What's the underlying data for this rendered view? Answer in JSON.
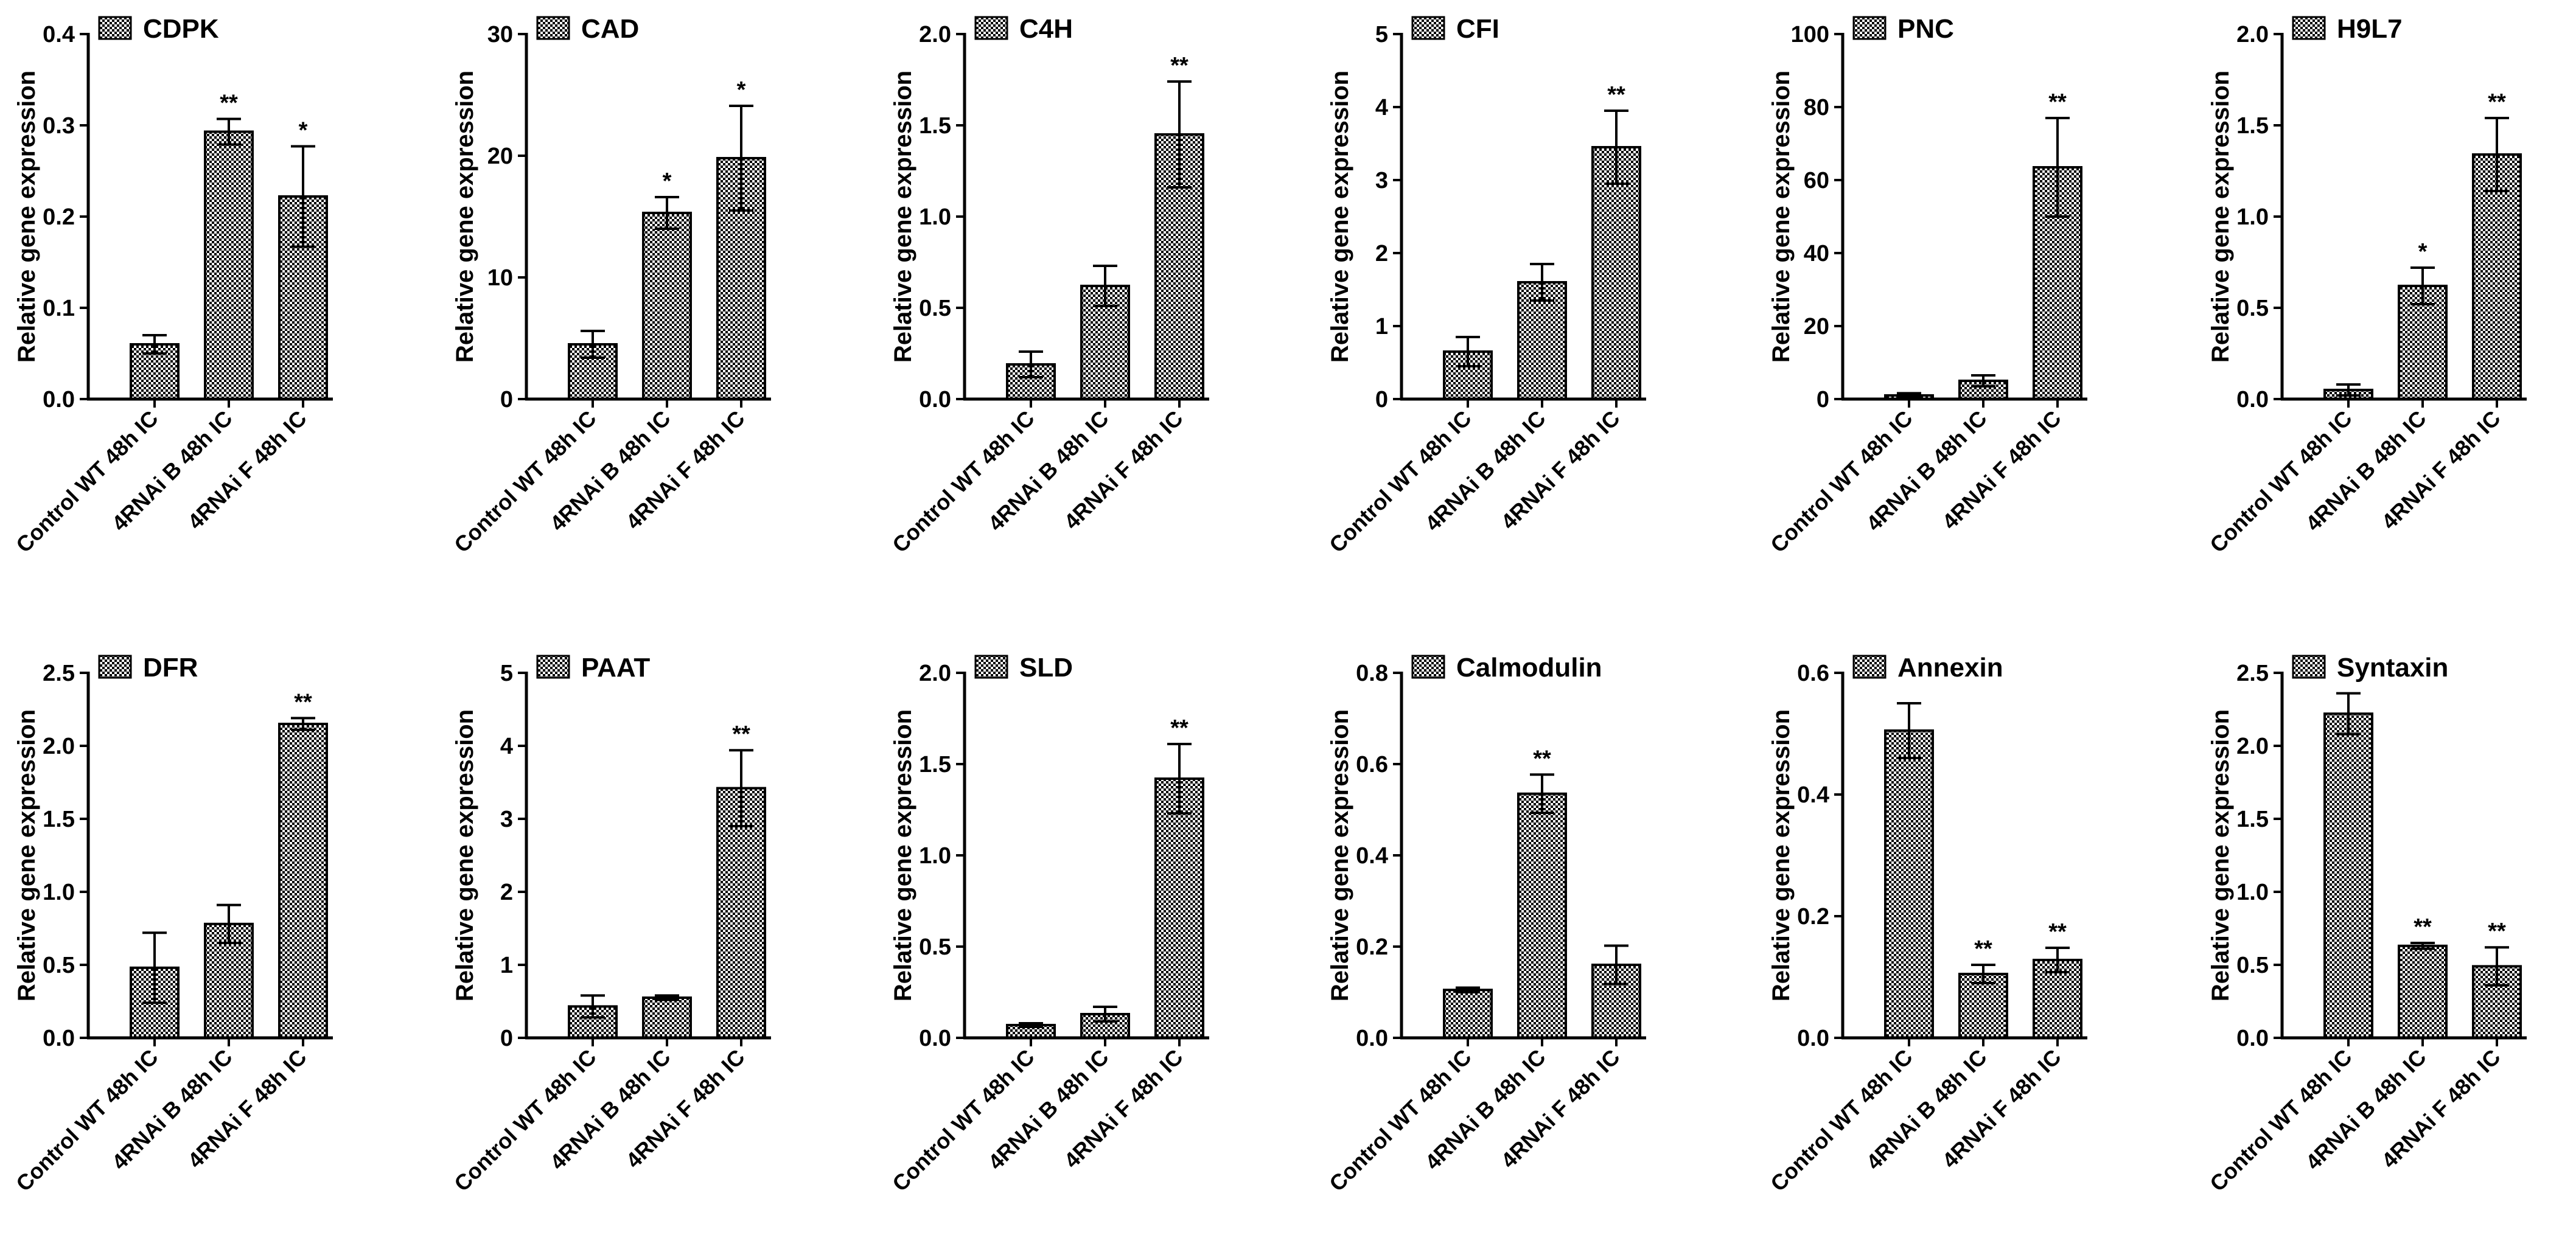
{
  "colors": {
    "bar_fill": "#ffffff",
    "hatch": "#000000",
    "axis": "#000000"
  },
  "chart_data": [
    {
      "type": "bar",
      "title": "CDPK",
      "legend": "CDPK",
      "ylabel": "Relative gene expression",
      "categories": [
        "Control WT 48h IC",
        "4RNAi B 48h IC",
        "4RNAi F 48h IC"
      ],
      "values": [
        0.06,
        0.293,
        0.222
      ],
      "errors": [
        0.01,
        0.014,
        0.055
      ],
      "significance": [
        "",
        "**",
        "*"
      ],
      "ylim": [
        0,
        0.4
      ],
      "yticks": [
        0,
        0.1,
        0.2,
        0.3,
        0.4
      ],
      "ytick_labels": [
        "0.0",
        "0.1",
        "0.2",
        "0.3",
        "0.4"
      ]
    },
    {
      "type": "bar",
      "title": "CAD",
      "legend": "CAD",
      "ylabel": "Relative gene expression",
      "categories": [
        "Control WT 48h IC",
        "4RNAi B 48h IC",
        "4RNAi F 48h IC"
      ],
      "values": [
        4.5,
        15.3,
        19.8
      ],
      "errors": [
        1.1,
        1.3,
        4.3
      ],
      "significance": [
        "",
        "*",
        "*"
      ],
      "ylim": [
        0,
        30
      ],
      "yticks": [
        0,
        10,
        20,
        30
      ],
      "ytick_labels": [
        "0",
        "10",
        "20",
        "30"
      ]
    },
    {
      "type": "bar",
      "title": "C4H",
      "legend": "C4H",
      "ylabel": "Relative gene expression",
      "categories": [
        "Control WT 48h IC",
        "4RNAi B 48h IC",
        "4RNAi F 48h IC"
      ],
      "values": [
        0.19,
        0.62,
        1.45
      ],
      "errors": [
        0.07,
        0.11,
        0.29
      ],
      "significance": [
        "",
        "",
        "**"
      ],
      "ylim": [
        0,
        2.0
      ],
      "yticks": [
        0,
        0.5,
        1.0,
        1.5,
        2.0
      ],
      "ytick_labels": [
        "0.0",
        "0.5",
        "1.0",
        "1.5",
        "2.0"
      ]
    },
    {
      "type": "bar",
      "title": "CFI",
      "legend": "CFI",
      "ylabel": "Relative gene expression",
      "categories": [
        "Control WT 48h IC",
        "4RNAi B 48h IC",
        "4RNAi F 48h IC"
      ],
      "values": [
        0.65,
        1.6,
        3.45
      ],
      "errors": [
        0.2,
        0.25,
        0.5
      ],
      "significance": [
        "",
        "",
        "**"
      ],
      "ylim": [
        0,
        5
      ],
      "yticks": [
        0,
        1,
        2,
        3,
        4,
        5
      ],
      "ytick_labels": [
        "0",
        "1",
        "2",
        "3",
        "4",
        "5"
      ]
    },
    {
      "type": "bar",
      "title": "PNC",
      "legend": "PNC",
      "ylabel": "Relative gene expression",
      "categories": [
        "Control WT 48h IC",
        "4RNAi B 48h IC",
        "4RNAi F 48h IC"
      ],
      "values": [
        1,
        5,
        63.5
      ],
      "errors": [
        0.6,
        1.5,
        13.5
      ],
      "significance": [
        "",
        "",
        "**"
      ],
      "ylim": [
        0,
        100
      ],
      "yticks": [
        0,
        20,
        40,
        60,
        80,
        100
      ],
      "ytick_labels": [
        "0",
        "20",
        "40",
        "60",
        "80",
        "100"
      ]
    },
    {
      "type": "bar",
      "title": "H9L7",
      "legend": "H9L7",
      "ylabel": "Relative gene expression",
      "categories": [
        "Control WT 48h IC",
        "4RNAi B 48h IC",
        "4RNAi F 48h IC"
      ],
      "values": [
        0.05,
        0.62,
        1.34
      ],
      "errors": [
        0.03,
        0.1,
        0.2
      ],
      "significance": [
        "",
        "*",
        "**"
      ],
      "ylim": [
        0,
        2.0
      ],
      "yticks": [
        0,
        0.5,
        1.0,
        1.5,
        2.0
      ],
      "ytick_labels": [
        "0.0",
        "0.5",
        "1.0",
        "1.5",
        "2.0"
      ]
    },
    {
      "type": "bar",
      "title": "DFR",
      "legend": "DFR",
      "ylabel": "Relative gene expression",
      "categories": [
        "Control WT 48h IC",
        "4RNAi B 48h IC",
        "4RNAi F 48h IC"
      ],
      "values": [
        0.48,
        0.78,
        2.15
      ],
      "errors": [
        0.24,
        0.13,
        0.04
      ],
      "significance": [
        "",
        "",
        "**"
      ],
      "ylim": [
        0,
        2.5
      ],
      "yticks": [
        0,
        0.5,
        1.0,
        1.5,
        2.0,
        2.5
      ],
      "ytick_labels": [
        "0.0",
        "0.5",
        "1.0",
        "1.5",
        "2.0",
        "2.5"
      ]
    },
    {
      "type": "bar",
      "title": "PAAT",
      "legend": "PAAT",
      "ylabel": "Relative gene expression",
      "categories": [
        "Control WT 48h IC",
        "4RNAi B 48h IC",
        "4RNAi F 48h IC"
      ],
      "values": [
        0.43,
        0.55,
        3.42
      ],
      "errors": [
        0.15,
        0.03,
        0.52
      ],
      "significance": [
        "",
        "",
        "**"
      ],
      "ylim": [
        0,
        5
      ],
      "yticks": [
        0,
        1,
        2,
        3,
        4,
        5
      ],
      "ytick_labels": [
        "0",
        "1",
        "2",
        "3",
        "4",
        "5"
      ]
    },
    {
      "type": "bar",
      "title": "SLD",
      "legend": "SLD",
      "ylabel": "Relative gene expression",
      "categories": [
        "Control WT 48h IC",
        "4RNAi B 48h IC",
        "4RNAi F 48h IC"
      ],
      "values": [
        0.07,
        0.13,
        1.42
      ],
      "errors": [
        0.01,
        0.04,
        0.19
      ],
      "significance": [
        "",
        "",
        "**"
      ],
      "ylim": [
        0,
        2.0
      ],
      "yticks": [
        0,
        0.5,
        1.0,
        1.5,
        2.0
      ],
      "ytick_labels": [
        "0.0",
        "0.5",
        "1.0",
        "1.5",
        "2.0"
      ]
    },
    {
      "type": "bar",
      "title": "Calmodulin",
      "legend": "Calmodulin",
      "ylabel": "Relative gene expression",
      "categories": [
        "Control WT 48h IC",
        "4RNAi B 48h IC",
        "4RNAi F 48h IC"
      ],
      "values": [
        0.105,
        0.535,
        0.16
      ],
      "errors": [
        0.005,
        0.042,
        0.042
      ],
      "significance": [
        "",
        "**",
        ""
      ],
      "ylim": [
        0,
        0.8
      ],
      "yticks": [
        0,
        0.2,
        0.4,
        0.6,
        0.8
      ],
      "ytick_labels": [
        "0.0",
        "0.2",
        "0.4",
        "0.6",
        "0.8"
      ]
    },
    {
      "type": "bar",
      "title": "Annexin",
      "legend": "Annexin",
      "ylabel": "Relative gene expression",
      "categories": [
        "Control WT 48h IC",
        "4RNAi B 48h IC",
        "4RNAi F 48h IC"
      ],
      "values": [
        0.505,
        0.105,
        0.128
      ],
      "errors": [
        0.045,
        0.015,
        0.02
      ],
      "significance": [
        "",
        "**",
        "**"
      ],
      "ylim": [
        0,
        0.6
      ],
      "yticks": [
        0,
        0.2,
        0.4,
        0.6
      ],
      "ytick_labels": [
        "0.0",
        "0.2",
        "0.4",
        "0.6"
      ]
    },
    {
      "type": "bar",
      "title": "Syntaxin",
      "legend": "Syntaxin",
      "ylabel": "Relative gene expression",
      "categories": [
        "Control WT 48h IC",
        "4RNAi B 48h IC",
        "4RNAi F 48h IC"
      ],
      "values": [
        2.22,
        0.63,
        0.49
      ],
      "errors": [
        0.14,
        0.02,
        0.13
      ],
      "significance": [
        "",
        "**",
        "**"
      ],
      "ylim": [
        0,
        2.5
      ],
      "yticks": [
        0,
        0.5,
        1.0,
        1.5,
        2.0,
        2.5
      ],
      "ytick_labels": [
        "0.0",
        "0.5",
        "1.0",
        "1.5",
        "2.0",
        "2.5"
      ]
    }
  ]
}
